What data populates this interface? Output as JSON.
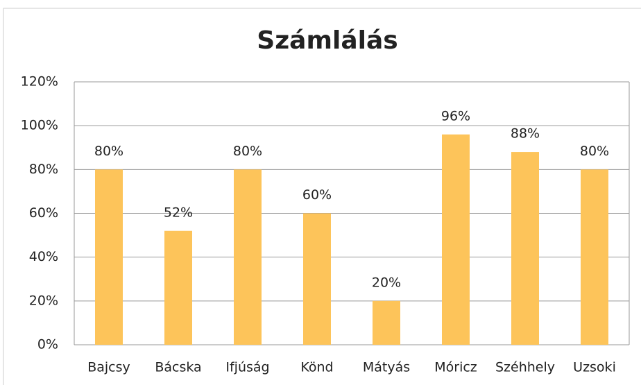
{
  "chart_data": {
    "type": "bar",
    "title": "Számlálás",
    "categories": [
      "Bajcsy",
      "Bácska",
      "Ifjúság",
      "Könd",
      "Mátyás",
      "Móricz",
      "Széhhely",
      "Uzsoki"
    ],
    "values": [
      80,
      52,
      80,
      60,
      20,
      96,
      88,
      80
    ],
    "value_labels": [
      "80%",
      "52%",
      "80%",
      "60%",
      "20%",
      "96%",
      "88%",
      "80%"
    ],
    "color": "#fdc45a",
    "ylim": [
      0,
      120
    ],
    "yticks": [
      {
        "value": 0,
        "label": "0%"
      },
      {
        "value": 20,
        "label": "20%"
      },
      {
        "value": 40,
        "label": "40%"
      },
      {
        "value": 60,
        "label": "60%"
      },
      {
        "value": 80,
        "label": "80%"
      },
      {
        "value": 100,
        "label": "100%"
      },
      {
        "value": 120,
        "label": "120%"
      }
    ],
    "grid": true
  }
}
